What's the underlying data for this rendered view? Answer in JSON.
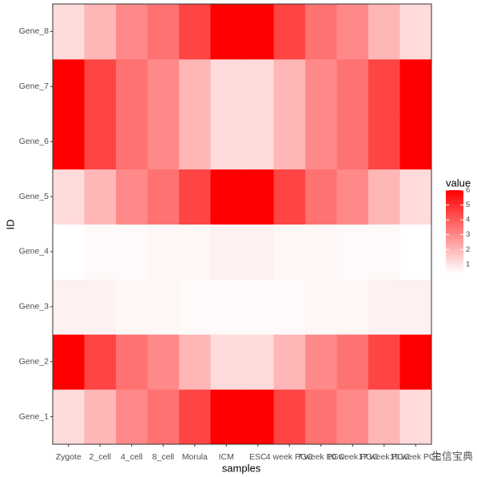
{
  "chart_data": {
    "type": "heatmap",
    "x_label": "samples",
    "y_label": "ID",
    "x": [
      "Zygote",
      "2_cell",
      "4_cell",
      "8_cell",
      "Morula",
      "ICM",
      "ESC",
      "4 week PGC",
      "7 week PGC",
      "10 week PGC",
      "17 week PGC",
      "19 week PGC"
    ],
    "y": [
      "Gene_1",
      "Gene_2",
      "Gene_3",
      "Gene_4",
      "Gene_5",
      "Gene_6",
      "Gene_7",
      "Gene_8"
    ],
    "values": [
      [
        1.2,
        2,
        3,
        3.5,
        4.5,
        6,
        6,
        4.5,
        3.5,
        3,
        2,
        1.2
      ],
      [
        6,
        4.5,
        3.5,
        3,
        2,
        1.2,
        1.2,
        2,
        3,
        3.5,
        4.5,
        6
      ],
      [
        0.7,
        0.7,
        0.6,
        0.6,
        0.5,
        0.5,
        0.5,
        0.5,
        0.6,
        0.6,
        0.7,
        0.7
      ],
      [
        0.4,
        0.5,
        0.5,
        0.6,
        0.6,
        0.7,
        0.7,
        0.6,
        0.6,
        0.5,
        0.5,
        0.4
      ],
      [
        1.2,
        2,
        3,
        3.5,
        4.5,
        6,
        6,
        4.5,
        3.5,
        3,
        2,
        1.2
      ],
      [
        6,
        4.5,
        3.5,
        3,
        2,
        1.2,
        1.2,
        2,
        3,
        3.5,
        4.5,
        6
      ],
      [
        6,
        4.5,
        3.5,
        3,
        2,
        1.2,
        1.2,
        2,
        3,
        3.5,
        4.5,
        6
      ],
      [
        1.2,
        2,
        3,
        3.5,
        4.5,
        6,
        6,
        4.5,
        3.5,
        3,
        2,
        1.2
      ]
    ],
    "low_color": "#ffffff",
    "high_color": "#ff0000",
    "clim": [
      0.4,
      6
    ],
    "legend_title": "value",
    "colorbar_ticks": [
      1,
      2,
      3,
      4,
      5,
      6
    ]
  },
  "watermark": "生信宝典"
}
